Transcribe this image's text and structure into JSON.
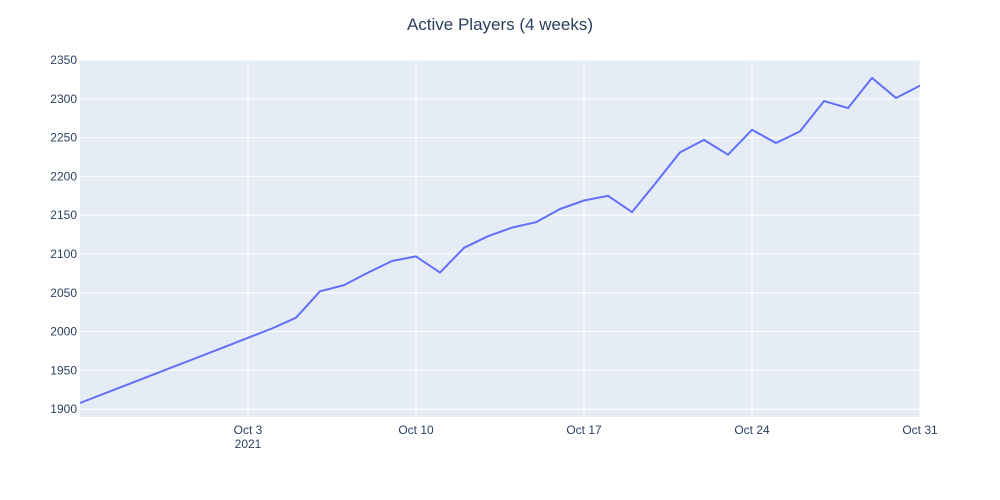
{
  "chart_data": {
    "type": "line",
    "title": "Active Players (4 weeks)",
    "xlabel": "",
    "ylabel": "",
    "x_range": [
      "2021-09-26",
      "2021-10-31"
    ],
    "ylim": [
      1890,
      2350
    ],
    "y_ticks": [
      1900,
      1950,
      2000,
      2050,
      2100,
      2150,
      2200,
      2250,
      2300,
      2350
    ],
    "x_ticks": [
      {
        "date": "2021-10-03",
        "label": "Oct 3",
        "sublabel": "2021"
      },
      {
        "date": "2021-10-10",
        "label": "Oct 10",
        "sublabel": ""
      },
      {
        "date": "2021-10-17",
        "label": "Oct 17",
        "sublabel": ""
      },
      {
        "date": "2021-10-24",
        "label": "Oct 24",
        "sublabel": ""
      },
      {
        "date": "2021-10-31",
        "label": "Oct 31",
        "sublabel": ""
      }
    ],
    "grid": true,
    "legend": "none",
    "series": [
      {
        "color": "#636efa",
        "x": [
          "2021-09-26",
          "2021-09-27",
          "2021-09-28",
          "2021-09-29",
          "2021-09-30",
          "2021-10-01",
          "2021-10-02",
          "2021-10-03",
          "2021-10-04",
          "2021-10-05",
          "2021-10-06",
          "2021-10-07",
          "2021-10-08",
          "2021-10-09",
          "2021-10-10",
          "2021-10-11",
          "2021-10-12",
          "2021-10-13",
          "2021-10-14",
          "2021-10-15",
          "2021-10-16",
          "2021-10-17",
          "2021-10-18",
          "2021-10-19",
          "2021-10-20",
          "2021-10-21",
          "2021-10-22",
          "2021-10-23",
          "2021-10-24",
          "2021-10-25",
          "2021-10-26",
          "2021-10-27",
          "2021-10-28",
          "2021-10-29",
          "2021-10-30",
          "2021-10-31"
        ],
        "y": [
          1908,
          1920,
          1932,
          1944,
          1956,
          1968,
          1980,
          1992,
          2004,
          2018,
          2052,
          2060,
          2076,
          2091,
          2097,
          2076,
          2108,
          2123,
          2134,
          2141,
          2158,
          2169,
          2175,
          2154,
          2192,
          2231,
          2247,
          2228,
          2260,
          2243,
          2258,
          2297,
          2288,
          2327,
          2301,
          2317
        ]
      }
    ]
  },
  "colors": {
    "plot_bg": "#e5ecf6",
    "grid": "#ffffff",
    "text": "#2a3f5f",
    "line": "#636efa"
  }
}
